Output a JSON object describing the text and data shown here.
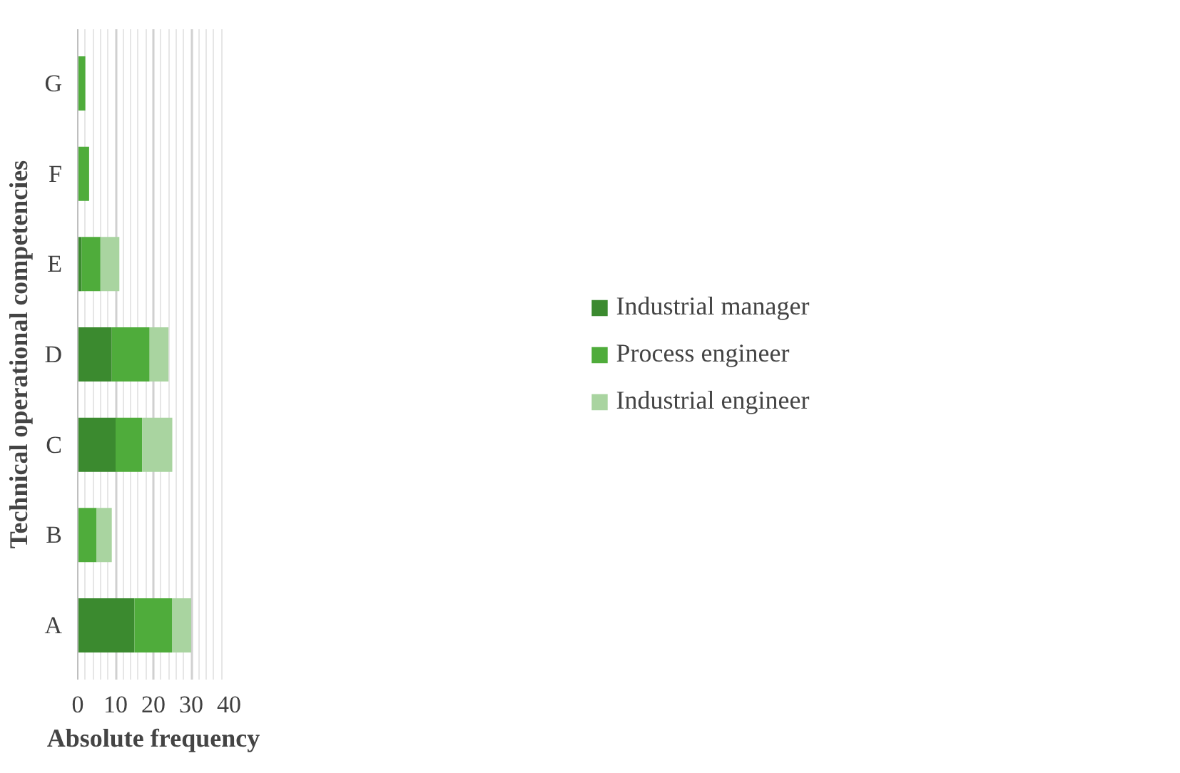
{
  "chart_data": {
    "type": "bar",
    "orientation": "horizontal",
    "stacked": true,
    "categories": [
      "G",
      "F",
      "E",
      "D",
      "C",
      "B",
      "A"
    ],
    "series": [
      {
        "name": "Industrial manager",
        "color": "#3b8a2f",
        "values": [
          null,
          null,
          1,
          9,
          10,
          null,
          15
        ]
      },
      {
        "name": "Process engineer",
        "color": "#4fac3b",
        "values": [
          2,
          3,
          5,
          10,
          7,
          5,
          10
        ]
      },
      {
        "name": "Industrial engineer",
        "color": "#a9d4a0",
        "values": [
          null,
          null,
          5,
          5,
          8,
          4,
          5
        ]
      }
    ],
    "xlabel": "Absolute frequency",
    "ylabel": "Technical operational competencies",
    "xlim": [
      0,
      40
    ],
    "xticks": [
      0,
      {
        "value": 2,
        "label": null
      },
      {
        "value": 4,
        "label": null
      },
      {
        "value": 6,
        "label": null
      },
      {
        "value": 8,
        "label": null
      },
      10,
      {
        "value": 12,
        "label": null
      },
      {
        "value": 14,
        "label": null
      },
      {
        "value": 16,
        "label": null
      },
      {
        "value": 18,
        "label": null
      },
      20,
      {
        "value": 22,
        "label": null
      },
      {
        "value": 24,
        "label": null
      },
      {
        "value": 26,
        "label": null
      },
      {
        "value": 28,
        "label": null
      },
      30,
      {
        "value": 32,
        "label": null
      },
      {
        "value": 34,
        "label": null
      },
      {
        "value": 36,
        "label": null
      },
      {
        "value": 38,
        "label": null
      },
      40
    ],
    "grid": "x",
    "legend": "right"
  }
}
